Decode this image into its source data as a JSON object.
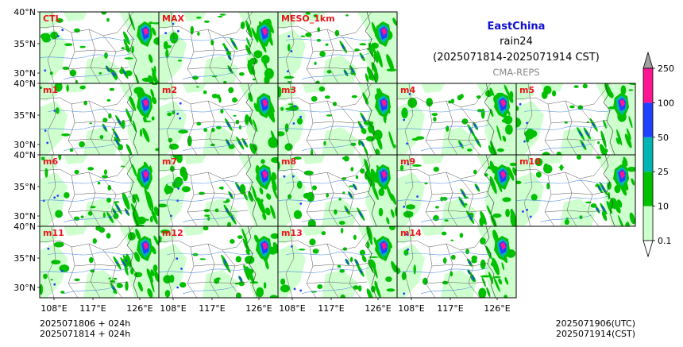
{
  "title": {
    "region": "EastChina",
    "variable": "rain24",
    "period": "(2025071814-2025071914 CST)",
    "model": "CMA-REPS"
  },
  "colors": {
    "region_title": "#1010d0",
    "panel_label": "#e8141a",
    "levels": [
      "#ccffcc",
      "#00c000",
      "#00b4b4",
      "#2040ff",
      "#ff1493"
    ],
    "over": "#a0a0a0",
    "under": "#ffffff",
    "river": "#4f8fe0",
    "border": "#555555"
  },
  "colorbar": {
    "labels": [
      "0.1",
      "10",
      "25",
      "50",
      "100",
      "250"
    ]
  },
  "panels": [
    [
      "CTL",
      "MAX",
      "MESO_1km"
    ],
    [
      "m1",
      "m2",
      "m3",
      "m4",
      "m5"
    ],
    [
      "m6",
      "m7",
      "m8",
      "m9",
      "m10"
    ],
    [
      "m11",
      "m12",
      "m13",
      "m14"
    ]
  ],
  "axes": {
    "lat_labels": [
      "40°N",
      "35°N",
      "30°N"
    ],
    "lon_labels": [
      "108°E",
      "117°E",
      "126°E"
    ]
  },
  "footer": {
    "init_utc": "2025071806  +  024h",
    "init_cst": "2025071814  +  024h",
    "valid_utc": "2025071906(UTC)",
    "valid_cst": "2025071914(CST)"
  }
}
